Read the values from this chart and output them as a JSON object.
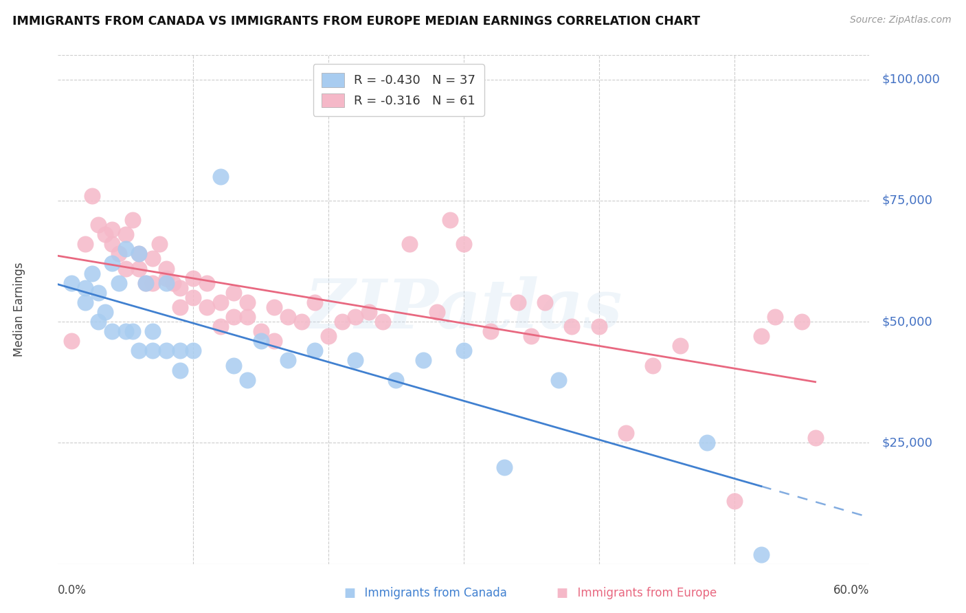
{
  "title": "IMMIGRANTS FROM CANADA VS IMMIGRANTS FROM EUROPE MEDIAN EARNINGS CORRELATION CHART",
  "source": "Source: ZipAtlas.com",
  "ylabel": "Median Earnings",
  "yticks": [
    0,
    25000,
    50000,
    75000,
    100000
  ],
  "ytick_labels": [
    "",
    "$25,000",
    "$50,000",
    "$75,000",
    "$100,000"
  ],
  "ymin": 0,
  "ymax": 105000,
  "xmin": 0.0,
  "xmax": 0.6,
  "legend_r_canada": "-0.430",
  "legend_n_canada": "37",
  "legend_r_europe": "-0.316",
  "legend_n_europe": "61",
  "color_canada": "#A8CCF0",
  "color_europe": "#F5B8C8",
  "color_canada_line": "#4080D0",
  "color_europe_line": "#E86880",
  "color_right_axis": "#4472C4",
  "watermark_text": "ZIPatlas",
  "background_color": "#FFFFFF",
  "grid_color": "#CCCCCC",
  "canada_scatter_x": [
    0.01,
    0.02,
    0.02,
    0.025,
    0.03,
    0.03,
    0.035,
    0.04,
    0.04,
    0.045,
    0.05,
    0.05,
    0.055,
    0.06,
    0.06,
    0.065,
    0.07,
    0.07,
    0.08,
    0.08,
    0.09,
    0.09,
    0.1,
    0.12,
    0.13,
    0.14,
    0.15,
    0.17,
    0.19,
    0.22,
    0.25,
    0.27,
    0.3,
    0.33,
    0.37,
    0.48,
    0.52
  ],
  "canada_scatter_y": [
    58000,
    57000,
    54000,
    60000,
    50000,
    56000,
    52000,
    48000,
    62000,
    58000,
    48000,
    65000,
    48000,
    64000,
    44000,
    58000,
    48000,
    44000,
    58000,
    44000,
    44000,
    40000,
    44000,
    80000,
    41000,
    38000,
    46000,
    42000,
    44000,
    42000,
    38000,
    42000,
    44000,
    20000,
    38000,
    25000,
    2000
  ],
  "europe_scatter_x": [
    0.01,
    0.02,
    0.025,
    0.03,
    0.035,
    0.04,
    0.04,
    0.045,
    0.05,
    0.05,
    0.055,
    0.06,
    0.06,
    0.065,
    0.07,
    0.07,
    0.075,
    0.08,
    0.08,
    0.085,
    0.09,
    0.09,
    0.1,
    0.1,
    0.11,
    0.11,
    0.12,
    0.12,
    0.13,
    0.13,
    0.14,
    0.14,
    0.15,
    0.16,
    0.16,
    0.17,
    0.18,
    0.19,
    0.2,
    0.21,
    0.22,
    0.23,
    0.24,
    0.26,
    0.28,
    0.29,
    0.3,
    0.32,
    0.34,
    0.35,
    0.36,
    0.38,
    0.4,
    0.42,
    0.44,
    0.46,
    0.5,
    0.52,
    0.53,
    0.55,
    0.56
  ],
  "europe_scatter_y": [
    46000,
    66000,
    76000,
    70000,
    68000,
    66000,
    69000,
    64000,
    61000,
    68000,
    71000,
    64000,
    61000,
    58000,
    63000,
    58000,
    66000,
    61000,
    59000,
    58000,
    57000,
    53000,
    59000,
    55000,
    58000,
    53000,
    54000,
    49000,
    56000,
    51000,
    54000,
    51000,
    48000,
    53000,
    46000,
    51000,
    50000,
    54000,
    47000,
    50000,
    51000,
    52000,
    50000,
    66000,
    52000,
    71000,
    66000,
    48000,
    54000,
    47000,
    54000,
    49000,
    49000,
    27000,
    41000,
    45000,
    13000,
    47000,
    51000,
    50000,
    26000
  ]
}
